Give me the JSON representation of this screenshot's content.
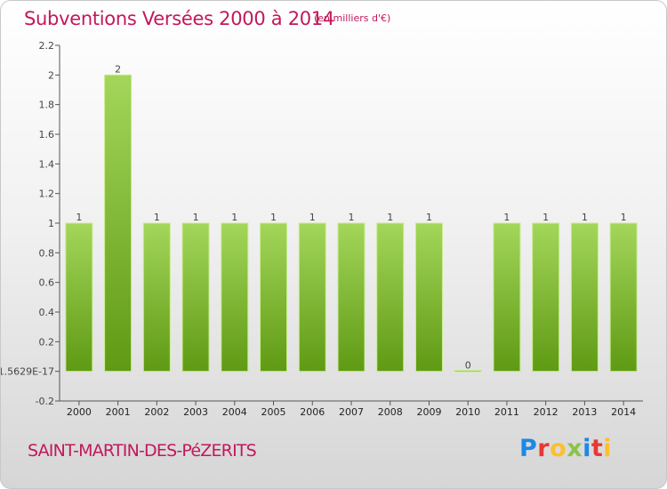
{
  "header": {
    "title": "Subventions Versées 2000 à 2014",
    "subtitle": "(en milliers d'€)"
  },
  "footer": {
    "commune": "SAINT-MARTIN-DES-PéZERITS",
    "logo": {
      "letters": [
        "P",
        "r",
        "o",
        "x",
        "i",
        "t",
        "i"
      ],
      "colors": [
        "#1e88e5",
        "#e53935",
        "#fbc02d",
        "#8bc34a",
        "#1e88e5",
        "#e53935",
        "#fbc02d"
      ]
    }
  },
  "chart_data": {
    "type": "bar",
    "title": "Subventions Versées 2000 à 2014",
    "categories": [
      "2000",
      "2001",
      "2002",
      "2003",
      "2004",
      "2005",
      "2006",
      "2007",
      "2008",
      "2009",
      "2010",
      "2011",
      "2012",
      "2013",
      "2014"
    ],
    "values": [
      1,
      2,
      1,
      1,
      1,
      1,
      1,
      1,
      1,
      1,
      0,
      1,
      1,
      1,
      1
    ],
    "data_labels": [
      "1",
      "2",
      "1",
      "1",
      "1",
      "1",
      "1",
      "1",
      "1",
      "1",
      "0",
      "1",
      "1",
      "1",
      "1"
    ],
    "ylim": [
      -0.2,
      2.2
    ],
    "yticks": [
      -0.2,
      0,
      0.2,
      0.4,
      0.6,
      0.8,
      1,
      1.2,
      1.4,
      1.6,
      1.8,
      2,
      2.2
    ],
    "ytick_labels": [
      "-0.2",
      "1.5629E-17",
      "0.2",
      "0.4",
      "0.6",
      "0.8",
      "1",
      "1.2",
      "1.4",
      "1.6",
      "1.8",
      "2",
      "2.2"
    ],
    "grid": false,
    "colors": {
      "bar_top": "#a3d65a",
      "bar_bottom": "#5f9a14",
      "bar_edge": "#c9ec8e",
      "axis": "#555555"
    }
  }
}
